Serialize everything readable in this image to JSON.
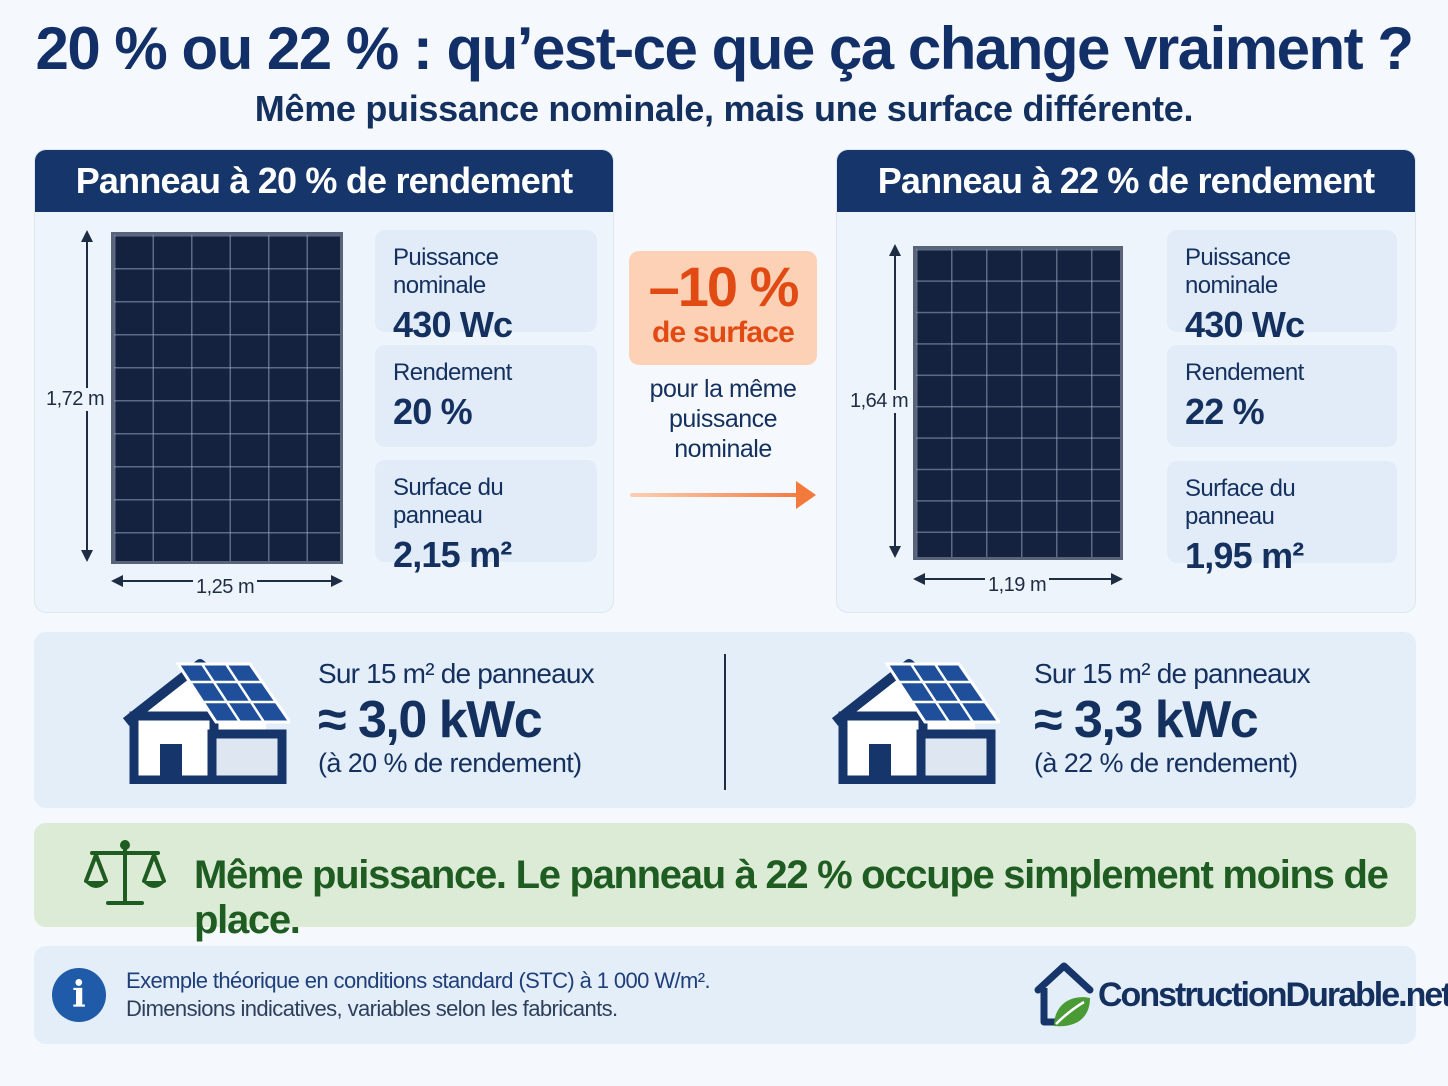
{
  "header": {
    "title": "20 % ou 22 % : qu’est-ce que ça change vraiment ?",
    "subtitle": "Même puissance nominale, mais une surface différente."
  },
  "panels": [
    {
      "title": "Panneau à 20 % de rendement",
      "height": "1,72 m",
      "width": "1,25 m",
      "stats": [
        {
          "label": "Puissance nominale",
          "value": "430 Wc"
        },
        {
          "label": "Rendement",
          "value": "20 %"
        },
        {
          "label": "Surface du panneau",
          "value": "2,15 m²"
        }
      ]
    },
    {
      "title": "Panneau à 22 % de rendement",
      "height": "1,64 m",
      "width": "1,19 m",
      "stats": [
        {
          "label": "Puissance nominale",
          "value": "430 Wc"
        },
        {
          "label": "Rendement",
          "value": "22 %"
        },
        {
          "label": "Surface du panneau",
          "value": "1,95 m²"
        }
      ]
    }
  ],
  "comparison": {
    "big": "–10 %",
    "small": "de surface",
    "note": [
      "pour la même",
      "puissance",
      "nominale"
    ]
  },
  "roof": [
    {
      "label": "Sur 15 m² de panneaux",
      "value": "≈ 3,0 kWc",
      "sub": "(à 20 % de rendement)"
    },
    {
      "label": "Sur 15 m² de panneaux",
      "value": "≈ 3,3 kWc",
      "sub": "(à 22 % de rendement)"
    }
  ],
  "banner": {
    "text": "Même puissance. Le panneau à 22 % occupe simplement moins de place.",
    "icon": "balance-scale-icon"
  },
  "footer": {
    "icon_letter": "i",
    "note1": "Exemple théorique en conditions standard (STC) à 1 000 W/m².",
    "note2": "Dimensions indicatives, variables selon les fabricants.",
    "brand": "ConstructionDurable.net"
  },
  "colors": {
    "navy": "#16366b",
    "accent_orange": "#e24a14",
    "green": "#1e5c21"
  }
}
